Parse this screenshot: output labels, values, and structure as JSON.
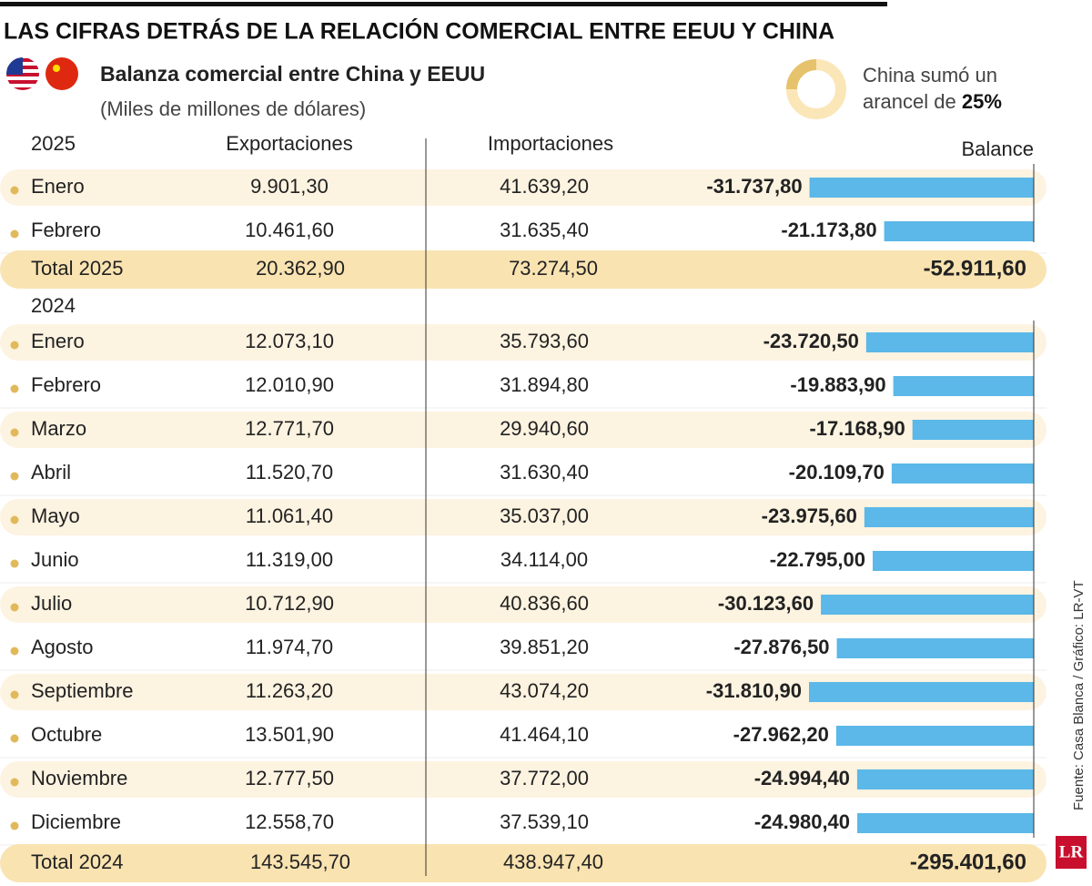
{
  "title": "LAS CIFRAS DETRÁS DE LA RELACIÓN COMERCIAL ENTRE EEUU Y CHINA",
  "subtitle": "Balanza comercial entre China y EEUU",
  "units": "(Miles de millones de dólares)",
  "annotation": {
    "line1": "China sumó un",
    "line2": "arancel de",
    "value": 25,
    "label": "25%"
  },
  "headers": {
    "exports": "Exportaciones",
    "imports": "Importaciones",
    "balance": "Balance"
  },
  "source": "Fuente: Casa Blanca / Gráfico: LR-VT",
  "logo": "LR",
  "sections": [
    {
      "year": "2025",
      "rows": [
        {
          "month": "Enero",
          "exports": "9.901,30",
          "imports": "41.639,20",
          "balance": {
            "value": -31737.8,
            "label": "-31.737,80"
          }
        },
        {
          "month": "Febrero",
          "exports": "10.461,60",
          "imports": "31.635,40",
          "balance": {
            "value": -21173.8,
            "label": "-21.173,80"
          }
        }
      ],
      "total": {
        "label": "Total 2025",
        "exports": "20.362,90",
        "imports": "73.274,50",
        "balance": "-52.911,60"
      }
    },
    {
      "year": "2024",
      "rows": [
        {
          "month": "Enero",
          "exports": "12.073,10",
          "imports": "35.793,60",
          "balance": {
            "value": -23720.5,
            "label": "-23.720,50"
          }
        },
        {
          "month": "Febrero",
          "exports": "12.010,90",
          "imports": "31.894,80",
          "balance": {
            "value": -19883.9,
            "label": "-19.883,90"
          }
        },
        {
          "month": "Marzo",
          "exports": "12.771,70",
          "imports": "29.940,60",
          "balance": {
            "value": -17168.9,
            "label": "-17.168,90"
          }
        },
        {
          "month": "Abril",
          "exports": "11.520,70",
          "imports": "31.630,40",
          "balance": {
            "value": -20109.7,
            "label": "-20.109,70"
          }
        },
        {
          "month": "Mayo",
          "exports": "11.061,40",
          "imports": "35.037,00",
          "balance": {
            "value": -23975.6,
            "label": "-23.975,60"
          }
        },
        {
          "month": "Junio",
          "exports": "11.319,00",
          "imports": "34.114,00",
          "balance": {
            "value": -22795.0,
            "label": "-22.795,00"
          }
        },
        {
          "month": "Julio",
          "exports": "10.712,90",
          "imports": "40.836,60",
          "balance": {
            "value": -30123.6,
            "label": "-30.123,60"
          }
        },
        {
          "month": "Agosto",
          "exports": "11.974,70",
          "imports": "39.851,20",
          "balance": {
            "value": -27876.5,
            "label": "-27.876,50"
          }
        },
        {
          "month": "Septiembre",
          "exports": "11.263,20",
          "imports": "43.074,20",
          "balance": {
            "value": -31810.9,
            "label": "-31.810,90"
          }
        },
        {
          "month": "Octubre",
          "exports": "13.501,90",
          "imports": "41.464,10",
          "balance": {
            "value": -27962.2,
            "label": "-27.962,20"
          }
        },
        {
          "month": "Noviembre",
          "exports": "12.777,50",
          "imports": "37.772,00",
          "balance": {
            "value": -24994.4,
            "label": "-24.994,40"
          }
        },
        {
          "month": "Diciembre",
          "exports": "12.558,70",
          "imports": "37.539,10",
          "balance": {
            "value": -24980.4,
            "label": "-24.980,40"
          }
        }
      ],
      "total": {
        "label": "Total 2024",
        "exports": "143.545,70",
        "imports": "438.947,40",
        "balance": "-295.401,60"
      }
    }
  ]
}
